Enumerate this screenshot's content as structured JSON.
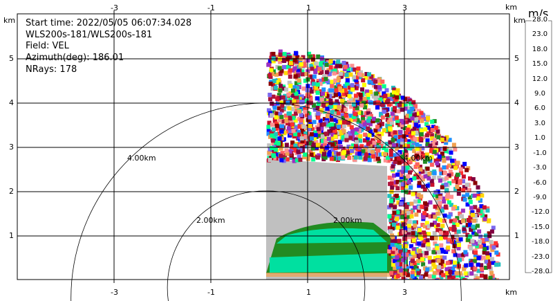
{
  "info": {
    "start_time": "Start time: 2022/05/05 06:07:34.028",
    "instrument": "WLS200s-181/WLS200s-181",
    "field": "Field: VEL",
    "azimuth": "Azimuth(deg): 186.01",
    "nrays": "NRays: 178"
  },
  "axes": {
    "x_unit": "km",
    "y_unit": "km",
    "x_ticks": [
      "-3",
      "-1",
      "1",
      "3"
    ],
    "y_ticks": [
      "5",
      "4",
      "3",
      "2",
      "1"
    ]
  },
  "range_rings": [
    "4.00km",
    "2.00km",
    "2.00km",
    "4.00km"
  ],
  "colorbar": {
    "unit": "m/s",
    "labels": [
      "28.0",
      "23.0",
      "18.0",
      "15.0",
      "12.0",
      "9.0",
      "6.0",
      "3.0",
      "1.0",
      "-1.0",
      "-3.0",
      "-6.0",
      "-9.0",
      "-12.0",
      "-15.0",
      "-18.0",
      "-23.0",
      "-28.0"
    ],
    "colors": [
      "#a8123c",
      "#c8102e",
      "#8b0000",
      "#ff3030",
      "#ff6060",
      "#ff9090",
      "#ffff00",
      "#ffd700",
      "#f0a050",
      "#c0c0c0",
      "#228b22",
      "#00ff90",
      "#20c0c0",
      "#1e90ff",
      "#0000ff",
      "#7b68ee",
      "#9b30c0",
      "#800040"
    ]
  }
}
